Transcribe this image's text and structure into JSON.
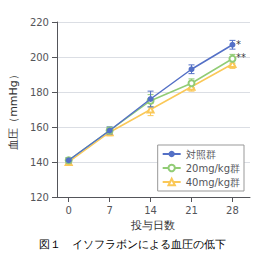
{
  "chart_data": {
    "type": "line",
    "caption": "図１　イソフラボンによる血圧の低下",
    "xlabel": "投与日数",
    "ylabel": "血圧（mmHg）",
    "x": [
      0,
      7,
      14,
      21,
      28
    ],
    "series": [
      {
        "name": "対照群",
        "values": [
          141,
          158,
          176,
          193,
          207
        ],
        "errors": [
          1.5,
          2.0,
          4.5,
          2.5,
          2.5
        ],
        "marker": "circle"
      },
      {
        "name": "20mg/kg群",
        "values": [
          141,
          158,
          175,
          185,
          199
        ],
        "errors": [
          1.5,
          2.0,
          3.5,
          2.5,
          2.5
        ],
        "marker": "open_circle"
      },
      {
        "name": "40mg/kg群",
        "values": [
          140,
          157,
          170,
          183,
          196
        ],
        "errors": [
          1.5,
          2.0,
          3.5,
          2.5,
          2.5
        ],
        "marker": "open_triangle"
      }
    ],
    "xlim": [
      -2,
      31
    ],
    "xticks": [
      0,
      7,
      14,
      21,
      28
    ],
    "ylim": [
      120,
      220
    ],
    "yticks": [
      120,
      140,
      160,
      180,
      200,
      220
    ],
    "grid": "y",
    "legend": "lower right",
    "annotations": [
      {
        "text": "*",
        "x": 28.6,
        "y": 207
      },
      {
        "text": "**",
        "x": 28.6,
        "y": 199.5
      }
    ]
  }
}
